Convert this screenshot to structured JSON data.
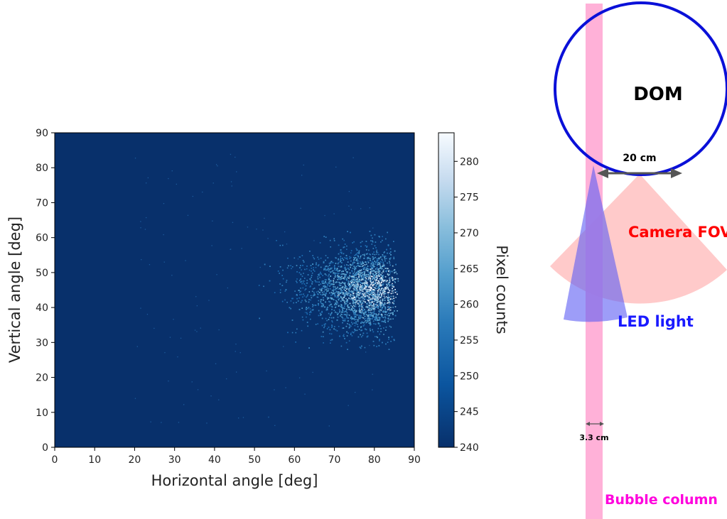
{
  "chart_data": [
    {
      "type": "heatmap",
      "title": "",
      "xlabel": "Horizontal angle [deg]",
      "ylabel": "Vertical angle [deg]",
      "xlim": [
        0,
        90
      ],
      "ylim": [
        0,
        90
      ],
      "x_ticks": [
        0,
        10,
        20,
        30,
        40,
        50,
        60,
        70,
        80,
        90
      ],
      "y_ticks": [
        0,
        10,
        20,
        30,
        40,
        50,
        60,
        70,
        80,
        90
      ],
      "grid": false,
      "colormap": "Blues_r",
      "colorbar": {
        "label": "Pixel counts",
        "range": [
          240,
          284
        ],
        "ticks": [
          240,
          245,
          250,
          255,
          260,
          265,
          270,
          275,
          280
        ]
      },
      "baseline_value": 240,
      "hotspot": {
        "x_center": 82,
        "y_center": 45,
        "x_extent": [
          55,
          90
        ],
        "y_extent": [
          30,
          60
        ],
        "peak_value": 284
      }
    }
  ],
  "schematic": {
    "dom_label": "DOM",
    "width_label": "20 cm",
    "camera_label": "Camera FOV",
    "led_label": "LED light",
    "column_width_label": "3.3 cm",
    "column_label": "Bubble column",
    "colors": {
      "dom_outline": "#0a10d8",
      "camera": "#ff0000",
      "led": "#1a1aff",
      "column": "#ff00dd",
      "column_fill": "#ffa8d4",
      "camera_fill": "#ffc4c4",
      "led_fill": "#7f7ff6"
    }
  }
}
